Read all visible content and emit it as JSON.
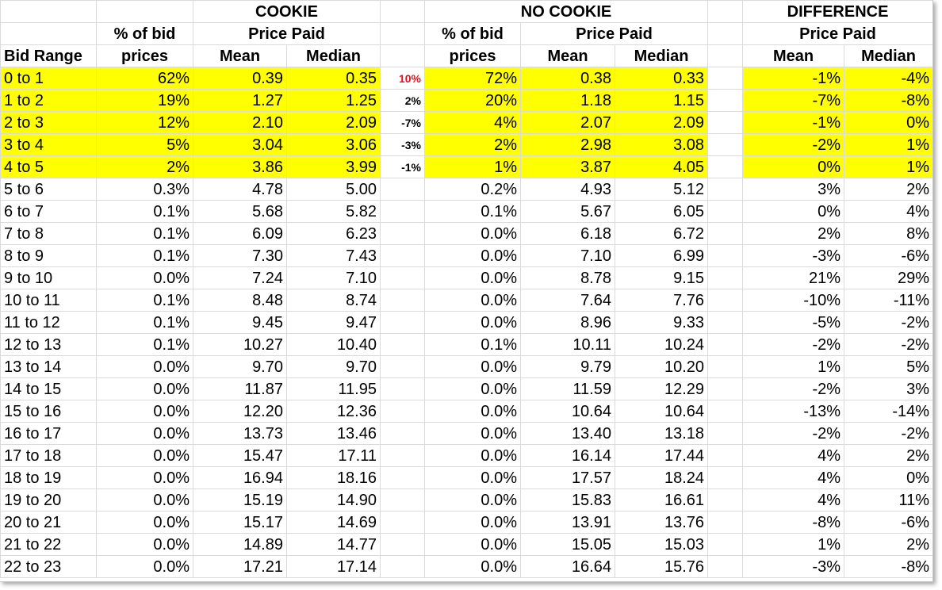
{
  "headers": {
    "cookie": "COOKIE",
    "no_cookie": "NO COOKIE",
    "difference": "DIFFERENCE",
    "pct_line1": "% of bid",
    "pct_line2": "prices",
    "price_paid": "Price Paid",
    "bid_range": "Bid Range",
    "mean": "Mean",
    "median": "Median"
  },
  "colors": {
    "highlight": "#ffff00",
    "positive_delta": "#e0101f"
  },
  "rows": [
    {
      "range": "0 to 1",
      "c_pct": "62%",
      "c_mean": "0.39",
      "c_median": "0.35",
      "delta": "10%",
      "n_pct": "72%",
      "n_mean": "0.38",
      "n_median": "0.33",
      "d_mean": "-1%",
      "d_median": "-4%",
      "highlight": true
    },
    {
      "range": "1 to 2",
      "c_pct": "19%",
      "c_mean": "1.27",
      "c_median": "1.25",
      "delta": "2%",
      "n_pct": "20%",
      "n_mean": "1.18",
      "n_median": "1.15",
      "d_mean": "-7%",
      "d_median": "-8%",
      "highlight": true
    },
    {
      "range": "2 to 3",
      "c_pct": "12%",
      "c_mean": "2.10",
      "c_median": "2.09",
      "delta": "-7%",
      "n_pct": "4%",
      "n_mean": "2.07",
      "n_median": "2.09",
      "d_mean": "-1%",
      "d_median": "0%",
      "highlight": true
    },
    {
      "range": "3 to 4",
      "c_pct": "5%",
      "c_mean": "3.04",
      "c_median": "3.06",
      "delta": "-3%",
      "n_pct": "2%",
      "n_mean": "2.98",
      "n_median": "3.08",
      "d_mean": "-2%",
      "d_median": "1%",
      "highlight": true
    },
    {
      "range": "4 to 5",
      "c_pct": "2%",
      "c_mean": "3.86",
      "c_median": "3.99",
      "delta": "-1%",
      "n_pct": "1%",
      "n_mean": "3.87",
      "n_median": "4.05",
      "d_mean": "0%",
      "d_median": "1%",
      "highlight": true
    },
    {
      "range": "5 to 6",
      "c_pct": "0.3%",
      "c_mean": "4.78",
      "c_median": "5.00",
      "delta": "",
      "n_pct": "0.2%",
      "n_mean": "4.93",
      "n_median": "5.12",
      "d_mean": "3%",
      "d_median": "2%",
      "highlight": false
    },
    {
      "range": "6 to 7",
      "c_pct": "0.1%",
      "c_mean": "5.68",
      "c_median": "5.82",
      "delta": "",
      "n_pct": "0.1%",
      "n_mean": "5.67",
      "n_median": "6.05",
      "d_mean": "0%",
      "d_median": "4%",
      "highlight": false
    },
    {
      "range": "7 to 8",
      "c_pct": "0.1%",
      "c_mean": "6.09",
      "c_median": "6.23",
      "delta": "",
      "n_pct": "0.0%",
      "n_mean": "6.18",
      "n_median": "6.72",
      "d_mean": "2%",
      "d_median": "8%",
      "highlight": false
    },
    {
      "range": "8 to 9",
      "c_pct": "0.1%",
      "c_mean": "7.30",
      "c_median": "7.43",
      "delta": "",
      "n_pct": "0.0%",
      "n_mean": "7.10",
      "n_median": "6.99",
      "d_mean": "-3%",
      "d_median": "-6%",
      "highlight": false
    },
    {
      "range": "9 to 10",
      "c_pct": "0.0%",
      "c_mean": "7.24",
      "c_median": "7.10",
      "delta": "",
      "n_pct": "0.0%",
      "n_mean": "8.78",
      "n_median": "9.15",
      "d_mean": "21%",
      "d_median": "29%",
      "highlight": false
    },
    {
      "range": "10 to 11",
      "c_pct": "0.1%",
      "c_mean": "8.48",
      "c_median": "8.74",
      "delta": "",
      "n_pct": "0.0%",
      "n_mean": "7.64",
      "n_median": "7.76",
      "d_mean": "-10%",
      "d_median": "-11%",
      "highlight": false
    },
    {
      "range": "11 to 12",
      "c_pct": "0.1%",
      "c_mean": "9.45",
      "c_median": "9.47",
      "delta": "",
      "n_pct": "0.0%",
      "n_mean": "8.96",
      "n_median": "9.33",
      "d_mean": "-5%",
      "d_median": "-2%",
      "highlight": false
    },
    {
      "range": "12 to 13",
      "c_pct": "0.1%",
      "c_mean": "10.27",
      "c_median": "10.40",
      "delta": "",
      "n_pct": "0.1%",
      "n_mean": "10.11",
      "n_median": "10.24",
      "d_mean": "-2%",
      "d_median": "-2%",
      "highlight": false
    },
    {
      "range": "13 to 14",
      "c_pct": "0.0%",
      "c_mean": "9.70",
      "c_median": "9.70",
      "delta": "",
      "n_pct": "0.0%",
      "n_mean": "9.79",
      "n_median": "10.20",
      "d_mean": "1%",
      "d_median": "5%",
      "highlight": false
    },
    {
      "range": "14 to 15",
      "c_pct": "0.0%",
      "c_mean": "11.87",
      "c_median": "11.95",
      "delta": "",
      "n_pct": "0.0%",
      "n_mean": "11.59",
      "n_median": "12.29",
      "d_mean": "-2%",
      "d_median": "3%",
      "highlight": false
    },
    {
      "range": "15 to 16",
      "c_pct": "0.0%",
      "c_mean": "12.20",
      "c_median": "12.36",
      "delta": "",
      "n_pct": "0.0%",
      "n_mean": "10.64",
      "n_median": "10.64",
      "d_mean": "-13%",
      "d_median": "-14%",
      "highlight": false
    },
    {
      "range": "16 to 17",
      "c_pct": "0.0%",
      "c_mean": "13.73",
      "c_median": "13.46",
      "delta": "",
      "n_pct": "0.0%",
      "n_mean": "13.40",
      "n_median": "13.18",
      "d_mean": "-2%",
      "d_median": "-2%",
      "highlight": false
    },
    {
      "range": "17 to 18",
      "c_pct": "0.0%",
      "c_mean": "15.47",
      "c_median": "17.11",
      "delta": "",
      "n_pct": "0.0%",
      "n_mean": "16.14",
      "n_median": "17.44",
      "d_mean": "4%",
      "d_median": "2%",
      "highlight": false
    },
    {
      "range": "18 to 19",
      "c_pct": "0.0%",
      "c_mean": "16.94",
      "c_median": "18.16",
      "delta": "",
      "n_pct": "0.0%",
      "n_mean": "17.57",
      "n_median": "18.24",
      "d_mean": "4%",
      "d_median": "0%",
      "highlight": false
    },
    {
      "range": "19 to 20",
      "c_pct": "0.0%",
      "c_mean": "15.19",
      "c_median": "14.90",
      "delta": "",
      "n_pct": "0.0%",
      "n_mean": "15.83",
      "n_median": "16.61",
      "d_mean": "4%",
      "d_median": "11%",
      "highlight": false
    },
    {
      "range": "20 to 21",
      "c_pct": "0.0%",
      "c_mean": "15.17",
      "c_median": "14.69",
      "delta": "",
      "n_pct": "0.0%",
      "n_mean": "13.91",
      "n_median": "13.76",
      "d_mean": "-8%",
      "d_median": "-6%",
      "highlight": false
    },
    {
      "range": "21 to 22",
      "c_pct": "0.0%",
      "c_mean": "14.89",
      "c_median": "14.77",
      "delta": "",
      "n_pct": "0.0%",
      "n_mean": "15.05",
      "n_median": "15.03",
      "d_mean": "1%",
      "d_median": "2%",
      "highlight": false
    },
    {
      "range": "22 to 23",
      "c_pct": "0.0%",
      "c_mean": "17.21",
      "c_median": "17.14",
      "delta": "",
      "n_pct": "0.0%",
      "n_mean": "16.64",
      "n_median": "15.76",
      "d_mean": "-3%",
      "d_median": "-8%",
      "highlight": false
    }
  ]
}
